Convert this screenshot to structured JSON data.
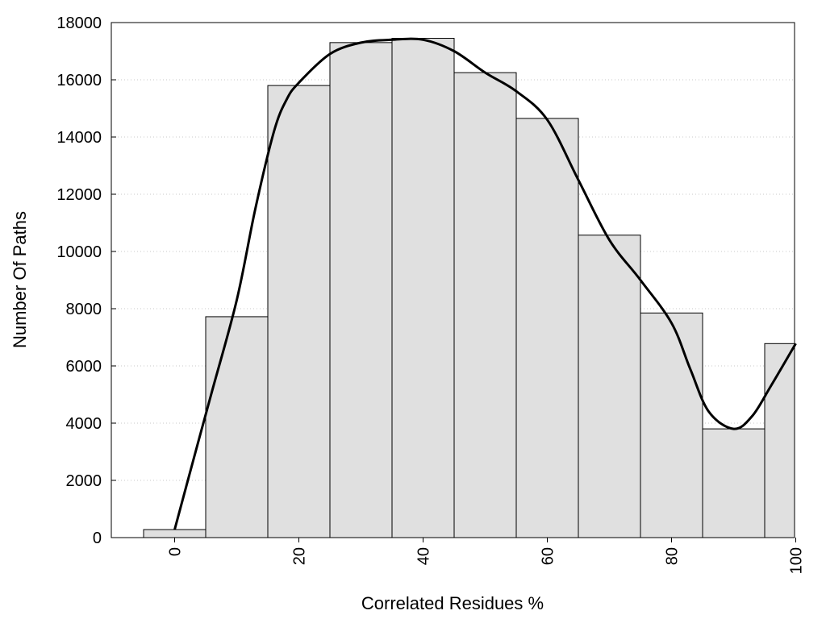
{
  "chart_data": {
    "type": "bar",
    "title": "",
    "xlabel": "Correlated Residues %",
    "ylabel": "Number Of Paths",
    "xlim": [
      -10,
      100
    ],
    "ylim": [
      0,
      18000
    ],
    "x_ticks": [
      0,
      20,
      40,
      60,
      80,
      100
    ],
    "y_ticks": [
      0,
      2000,
      4000,
      6000,
      8000,
      10000,
      12000,
      14000,
      16000,
      18000
    ],
    "bin_width": 10,
    "grid": "horizontal dotted",
    "legend": "none",
    "bar_color": "#e0e0e0",
    "bars": [
      {
        "x": 0,
        "value": 280
      },
      {
        "x": 10,
        "value": 7720
      },
      {
        "x": 20,
        "value": 15800
      },
      {
        "x": 30,
        "value": 17300
      },
      {
        "x": 40,
        "value": 17450
      },
      {
        "x": 50,
        "value": 16250
      },
      {
        "x": 60,
        "value": 14650
      },
      {
        "x": 70,
        "value": 10570
      },
      {
        "x": 80,
        "value": 7850
      },
      {
        "x": 90,
        "value": 3800
      },
      {
        "x": 100,
        "value": 6780
      }
    ],
    "curve": {
      "x": [
        0,
        3,
        6,
        10,
        13,
        16,
        18,
        20,
        25,
        30,
        35,
        40,
        45,
        50,
        55,
        60,
        65,
        70,
        75,
        80,
        83,
        86,
        90,
        93,
        96,
        100
      ],
      "y": [
        280,
        2700,
        5100,
        8300,
        11500,
        14200,
        15300,
        15900,
        16900,
        17300,
        17400,
        17400,
        17000,
        16250,
        15600,
        14600,
        12500,
        10400,
        9000,
        7500,
        5900,
        4400,
        3800,
        4250,
        5300,
        6780
      ]
    }
  }
}
